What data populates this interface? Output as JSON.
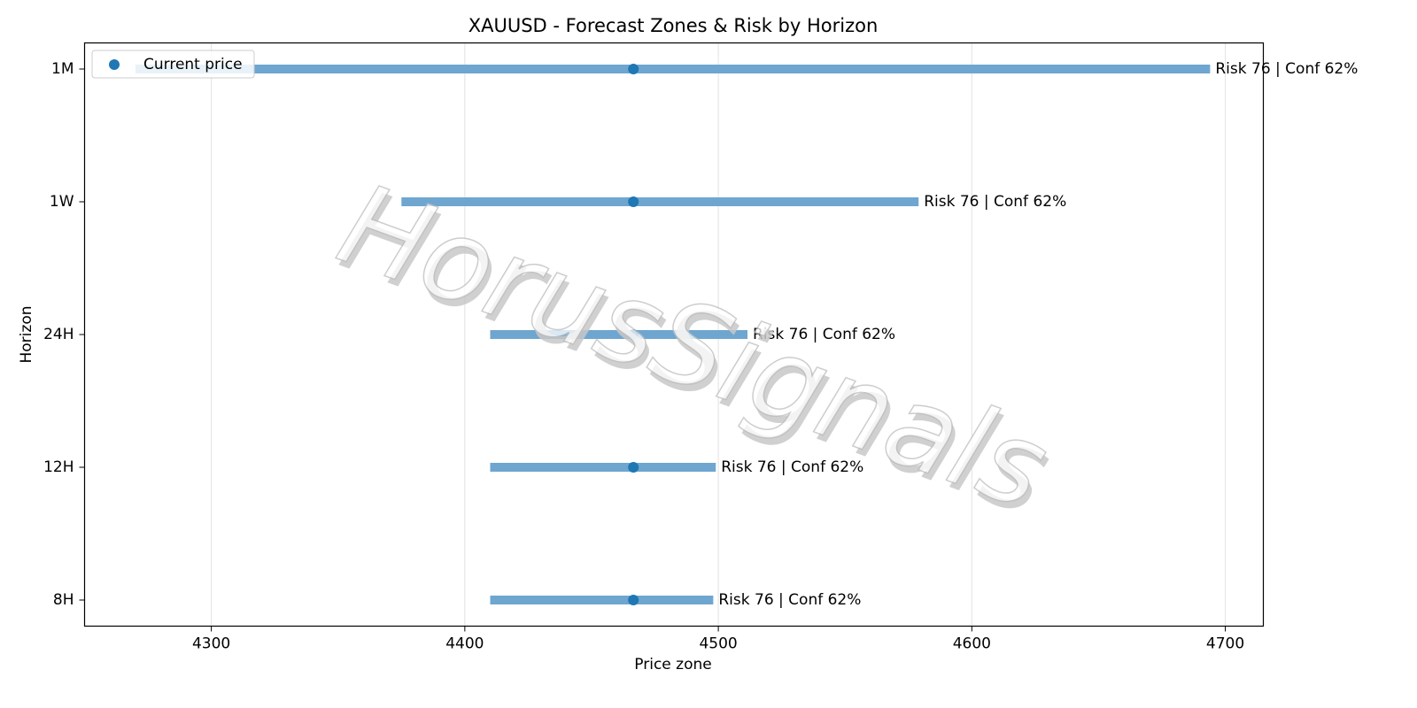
{
  "chart_data": {
    "type": "range",
    "title": "XAUUSD - Forecast Zones & Risk by Horizon",
    "xlabel": "Price zone",
    "ylabel": "Horizon",
    "categories": [
      "1M",
      "1W",
      "24H",
      "12H",
      "8H"
    ],
    "zone_low": [
      4270,
      4375,
      4410,
      4410,
      4410
    ],
    "zone_high": [
      4694,
      4579,
      4511.5,
      4499,
      4498
    ],
    "zone_color": "#6ea6d0",
    "current_price": {
      "name": "Current price",
      "color": "#1f77b4",
      "values": [
        4466.5,
        4466.5,
        4466.5,
        4466.5,
        4466.5
      ]
    },
    "annotations": [
      "Risk 76 | Conf 62%",
      "Risk 76 | Conf 62%",
      "Risk 76 | Conf 62%",
      "Risk 76 | Conf 62%",
      "Risk 76 | Conf 62%"
    ],
    "xlim": [
      4250,
      4715
    ],
    "xticks": [
      4300,
      4400,
      4500,
      4600,
      4700
    ],
    "grid": true,
    "legend": "upper left",
    "watermark": "HorusSignals"
  }
}
